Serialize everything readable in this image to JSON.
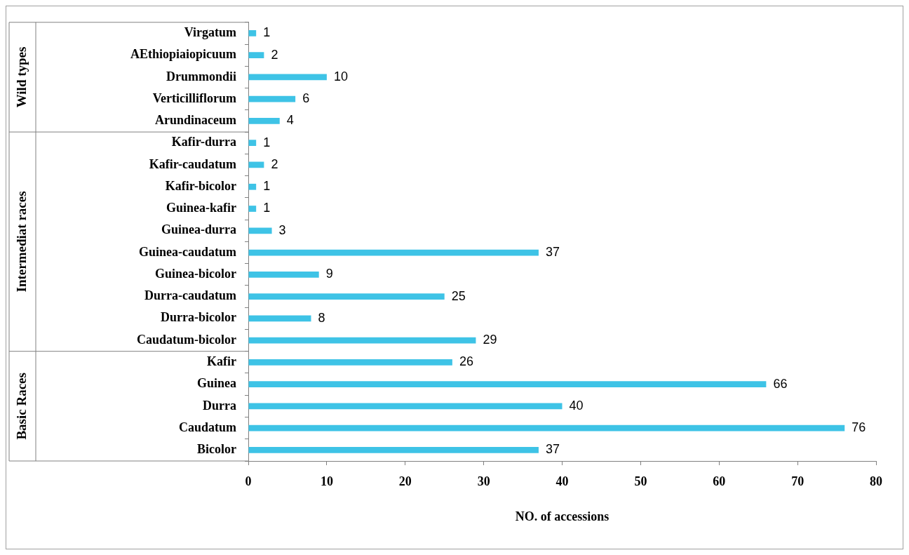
{
  "chart_data": {
    "type": "bar",
    "orientation": "horizontal",
    "xlabel": "NO. of accessions",
    "categories": [
      "Virgatum",
      "AEthiopiaiopicuum",
      "Drummondii",
      "Verticilliflorum",
      "Arundinaceum",
      "Kafir-durra",
      "Kafir-caudatum",
      "Kafir-bicolor",
      "Guinea-kafir",
      "Guinea-durra",
      "Guinea-caudatum",
      "Guinea-bicolor",
      "Durra-caudatum",
      "Durra-bicolor",
      "Caudatum-bicolor",
      "Kafir",
      "Guinea",
      "Durra",
      "Caudatum",
      "Bicolor"
    ],
    "values": [
      1,
      2,
      10,
      6,
      4,
      1,
      2,
      1,
      1,
      3,
      37,
      9,
      25,
      8,
      29,
      26,
      66,
      40,
      76,
      37
    ],
    "color": "#3ec3e6",
    "data_labels": true,
    "xlim": [
      0,
      80
    ],
    "xticks": [
      0,
      10,
      20,
      30,
      40,
      50,
      60,
      70,
      80
    ],
    "annotations": [
      "Wild types",
      "Intermediat races",
      "Basic Races"
    ]
  }
}
